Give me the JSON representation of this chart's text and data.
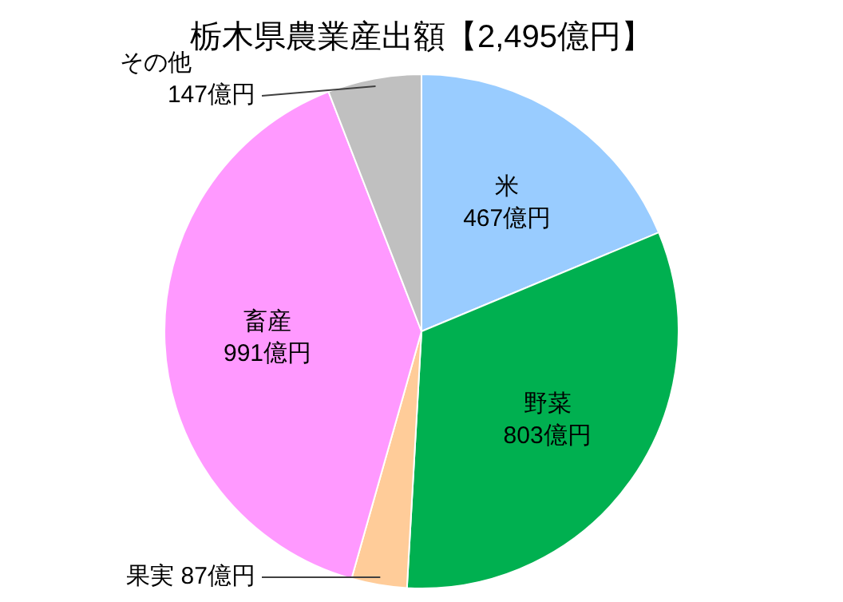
{
  "chart_data": {
    "type": "pie",
    "title": "栃木県農業産出額【2,495億円】",
    "categories": [
      "米",
      "野菜",
      "果実",
      "畜産",
      "その他"
    ],
    "values": [
      467,
      803,
      87,
      991,
      147
    ],
    "value_labels": [
      "467億円",
      "803億円",
      "87億円",
      "991億円",
      "147億円"
    ],
    "colors": [
      "#99ccff",
      "#00b050",
      "#ffcc99",
      "#ff99ff",
      "#c0c0c0"
    ],
    "legend": false
  }
}
